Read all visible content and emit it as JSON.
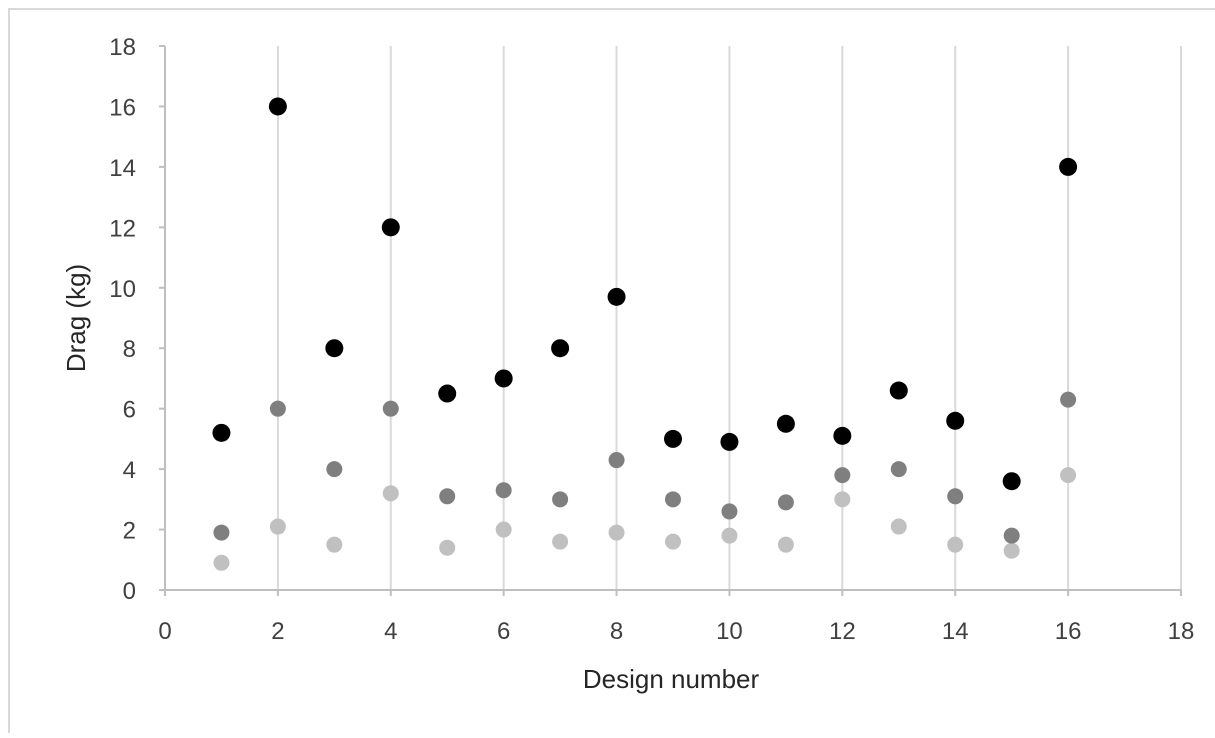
{
  "chart_data": {
    "type": "scatter",
    "title": "",
    "xlabel": "Design number",
    "ylabel": "Drag (kg)",
    "xlim": [
      0,
      18
    ],
    "ylim": [
      0,
      18
    ],
    "x_ticks": [
      "0",
      "2",
      "4",
      "6",
      "8",
      "10",
      "12",
      "14",
      "16",
      "18"
    ],
    "y_ticks": [
      "0",
      "2",
      "4",
      "6",
      "8",
      "10",
      "12",
      "14",
      "16",
      "18"
    ],
    "grid": "vertical",
    "legend": "none",
    "x": [
      1,
      2,
      3,
      4,
      5,
      6,
      7,
      8,
      9,
      10,
      11,
      12,
      13,
      14,
      15,
      16
    ],
    "series": [
      {
        "color": "#000000",
        "values": [
          5.2,
          16,
          8,
          12,
          6.5,
          7,
          8,
          9.7,
          5,
          4.9,
          5.5,
          5.1,
          6.6,
          5.6,
          3.6,
          14
        ]
      },
      {
        "color": "#7f7f7f",
        "values": [
          1.9,
          6,
          4,
          6,
          3.1,
          3.3,
          3,
          4.3,
          3,
          2.6,
          2.9,
          3.8,
          4,
          3.1,
          1.8,
          6.3
        ]
      },
      {
        "color": "#c0c0c0",
        "values": [
          0.9,
          2.1,
          1.5,
          3.2,
          1.4,
          2,
          1.6,
          1.9,
          1.6,
          1.8,
          1.5,
          3,
          2.1,
          1.5,
          1.3,
          3.8
        ]
      }
    ]
  }
}
